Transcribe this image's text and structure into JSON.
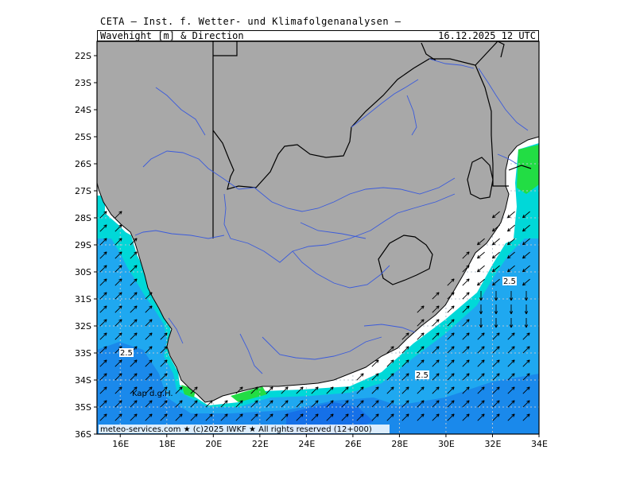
{
  "header": {
    "title": "CETA – Inst. f. Wetter- und Klimafolgenanalysen –",
    "variable": "Wavehight [m] & Direction",
    "valid_time": "16.12.2025 12 UTC"
  },
  "map": {
    "lat_labels": [
      "22S",
      "23S",
      "24S",
      "25S",
      "26S",
      "27S",
      "28S",
      "29S",
      "30S",
      "31S",
      "32S",
      "33S",
      "34S",
      "35S",
      "36S"
    ],
    "lon_labels": [
      "16E",
      "18E",
      "20E",
      "22E",
      "24E",
      "26E",
      "28E",
      "30E",
      "32E",
      "34E"
    ],
    "lat_range": [
      -22,
      -36
    ],
    "lon_range": [
      15,
      34
    ],
    "contour_labels": [
      "2.5",
      "2.5",
      "2.5"
    ],
    "place_label": "Kap d.g.H.",
    "footer": "meteo-services.com  ★ (c)2025 IWKF ★ All rights reserved (12+000)",
    "colors": {
      "land": "#a8a8a8",
      "rivers": "#3b5bdb",
      "border": "#000000",
      "wave_low": "#00d8d8",
      "wave_mid": "#1fa8f0",
      "wave_high": "#1570e8",
      "wave_green": "#22dd44"
    }
  }
}
